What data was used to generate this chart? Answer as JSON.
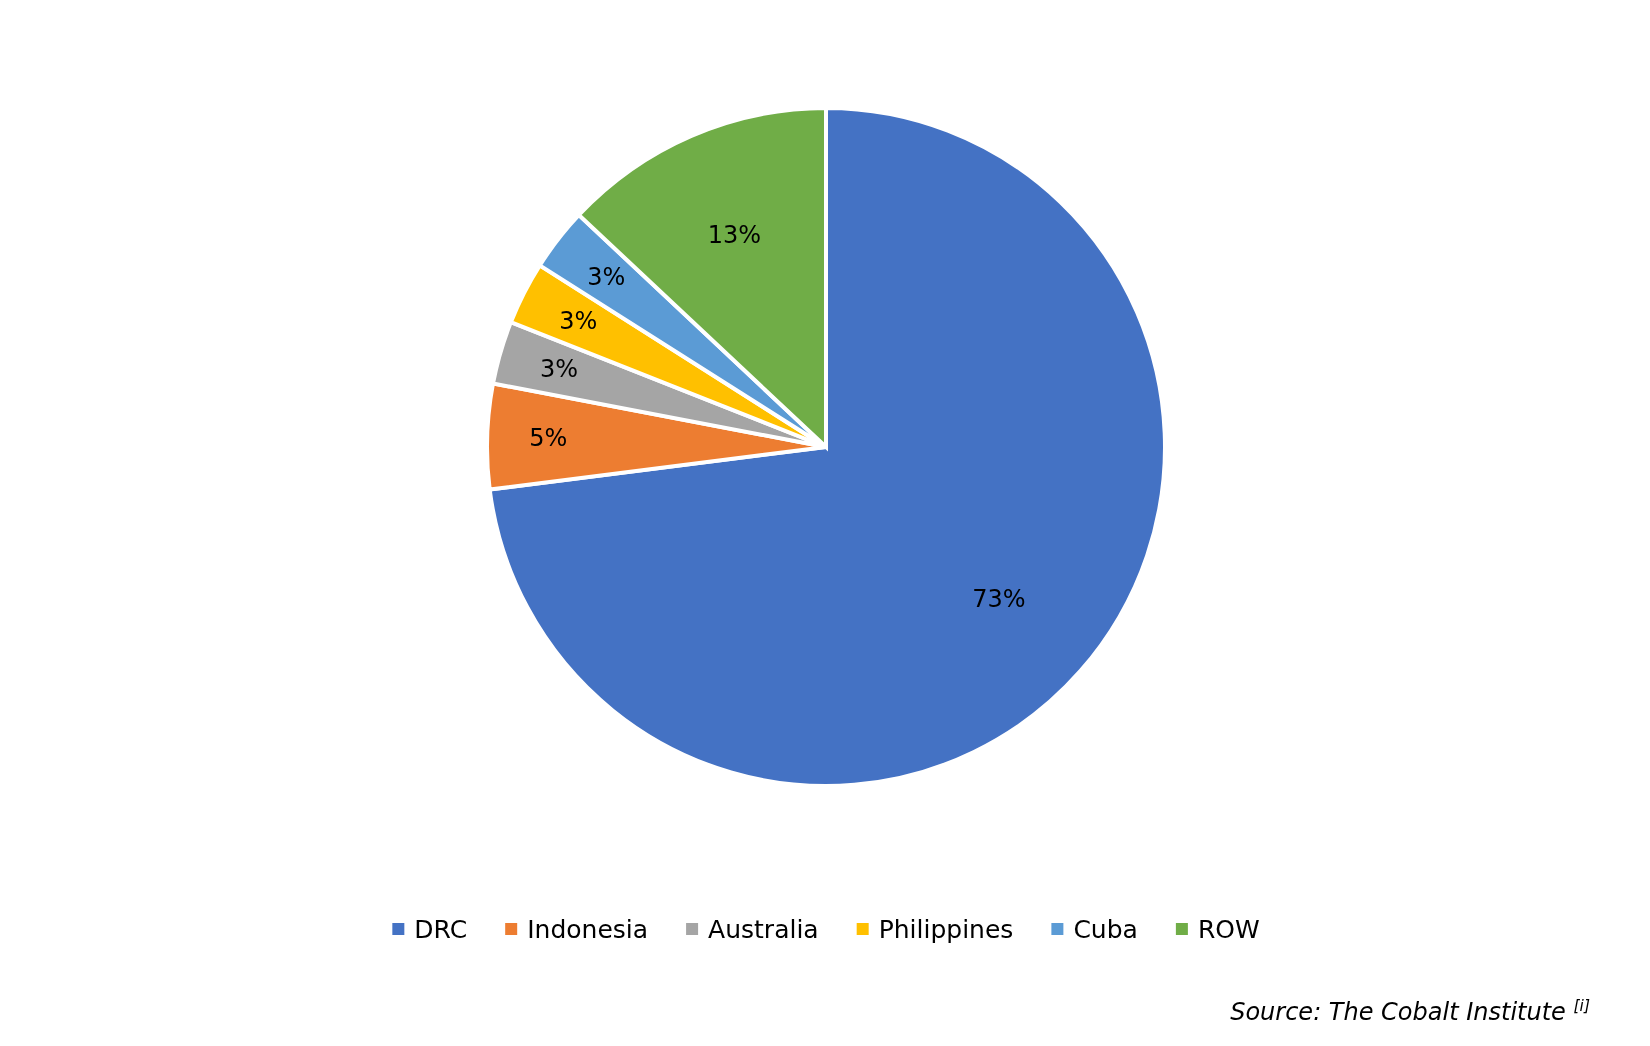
{
  "chart_data": {
    "type": "pie",
    "categories": [
      "DRC",
      "Indonesia",
      "Australia",
      "Philippines",
      "Cuba",
      "ROW"
    ],
    "values": [
      73,
      5,
      3,
      3,
      3,
      13
    ],
    "colors": [
      "#4472c4",
      "#ed7d31",
      "#a5a5a5",
      "#ffc000",
      "#5b9bd5",
      "#70ad47"
    ],
    "value_labels": [
      "73%",
      "5%",
      "3%",
      "3%",
      "3%",
      "13%"
    ],
    "legend": "bottom",
    "annotations": [
      "Source: The Cobalt Institute $^{[i]}$"
    ]
  }
}
